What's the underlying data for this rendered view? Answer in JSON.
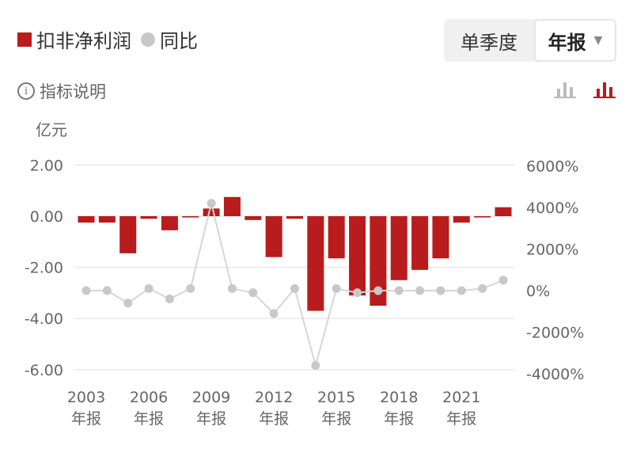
{
  "legend": {
    "bar_label": "扣非净利润",
    "line_label": "同比"
  },
  "toggle": {
    "quarter_label": "单季度",
    "annual_label": "年报"
  },
  "info_label": "指标说明",
  "info_icon_glyph": "i",
  "unit_label": "亿元",
  "colors": {
    "bar": "#b81c1c",
    "line": "#c8c8c8",
    "grid": "#e8e8e8",
    "axis_text": "#666666",
    "active_icon": "#b81c1c",
    "inactive_icon": "#bbbbbb"
  },
  "icons": {
    "bar_icon_inactive": "bar-chart-icon",
    "bar_icon_active": "bar-chart-icon-active",
    "dropdown": "caret-down-icon"
  },
  "chart_data": {
    "type": "bar",
    "categories": [
      "2003",
      "2004",
      "2005",
      "2006",
      "2007",
      "2008",
      "2009",
      "2010",
      "2011",
      "2012",
      "2013",
      "2014",
      "2015",
      "2016",
      "2017",
      "2018",
      "2019",
      "2020",
      "2021",
      "2022",
      "2023"
    ],
    "x_tick_labels": [
      {
        "year": "2003",
        "sub": "年报"
      },
      {
        "year": "2006",
        "sub": "年报"
      },
      {
        "year": "2009",
        "sub": "年报"
      },
      {
        "year": "2012",
        "sub": "年报"
      },
      {
        "year": "2015",
        "sub": "年报"
      },
      {
        "year": "2018",
        "sub": "年报"
      },
      {
        "year": "2021",
        "sub": "年报"
      }
    ],
    "series": [
      {
        "name": "扣非净利润",
        "axis": "left",
        "type": "bar",
        "values": [
          -0.25,
          -0.25,
          -1.45,
          -0.1,
          -0.55,
          -0.05,
          0.3,
          0.75,
          -0.15,
          -1.6,
          -0.1,
          -3.7,
          -1.65,
          -3.1,
          -3.5,
          -2.5,
          -2.1,
          -1.65,
          -0.25,
          -0.05,
          0.35
        ]
      },
      {
        "name": "同比",
        "axis": "right",
        "type": "line",
        "values": [
          0,
          0,
          -600,
          100,
          -400,
          100,
          4200,
          100,
          -100,
          -1100,
          100,
          -3600,
          100,
          -100,
          0,
          0,
          0,
          0,
          0,
          100,
          500
        ]
      }
    ],
    "left_axis": {
      "ticks": [
        2.0,
        0.0,
        -2.0,
        -4.0,
        -6.0
      ],
      "tick_labels": [
        "2.00",
        "0.00",
        "-2.00",
        "-4.00",
        "-6.00"
      ],
      "range": [
        -6,
        2
      ]
    },
    "right_axis": {
      "ticks": [
        6000,
        4000,
        2000,
        0,
        -2000,
        -4000
      ],
      "tick_labels": [
        "6000%",
        "4000%",
        "2000%",
        "0%",
        "-2000%",
        "-4000%"
      ],
      "range": [
        -4000,
        6000
      ]
    },
    "grid": true
  }
}
